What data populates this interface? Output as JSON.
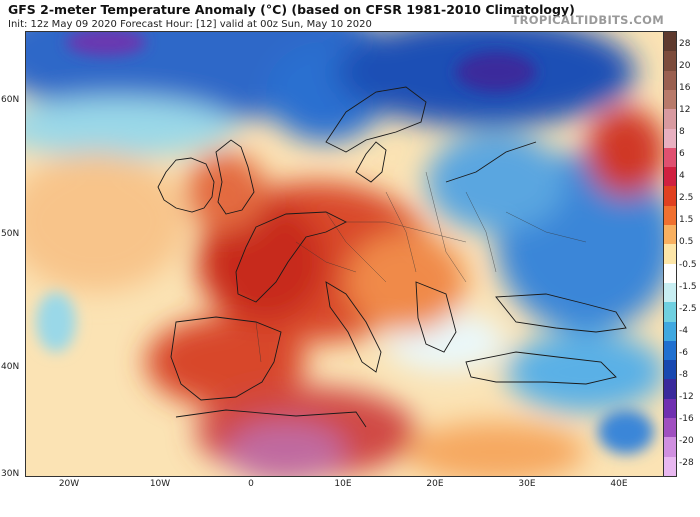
{
  "header": {
    "title": "GFS 2-meter Temperature Anomaly (°C) (based on CFSR 1981-2010 Climatology)",
    "subtitle": "Init: 12z May 09 2020   Forecast Hour: [12]   valid at 00z Sun, May 10 2020",
    "brand": "TROPICALTIDBITS.COM"
  },
  "map": {
    "lat_labels": [
      "60N",
      "50N",
      "40N",
      "30N"
    ],
    "lon_labels": [
      "20W",
      "10W",
      "0",
      "10E",
      "20E",
      "30E",
      "40E"
    ]
  },
  "colorbar": {
    "labels": [
      "28",
      "20",
      "16",
      "12",
      "8",
      "6",
      "4",
      "2.5",
      "1.5",
      "0.5",
      "-0.5",
      "-1.5",
      "-2.5",
      "-4",
      "-6",
      "-8",
      "-12",
      "-16",
      "-20",
      "-28"
    ],
    "colors": [
      "#5e3a2e",
      "#7c4c3c",
      "#9a6050",
      "#b87a6a",
      "#d89aa0",
      "#e8b0c0",
      "#e05070",
      "#d02040",
      "#e04020",
      "#f07030",
      "#f8b060",
      "#fde6a8",
      "#ffffff",
      "#c8eef2",
      "#70d0e0",
      "#40a8e0",
      "#2070d0",
      "#1848b0",
      "#3a2a9c",
      "#7030b0",
      "#a050c0",
      "#d090e0",
      "#e8b8f0"
    ]
  }
}
